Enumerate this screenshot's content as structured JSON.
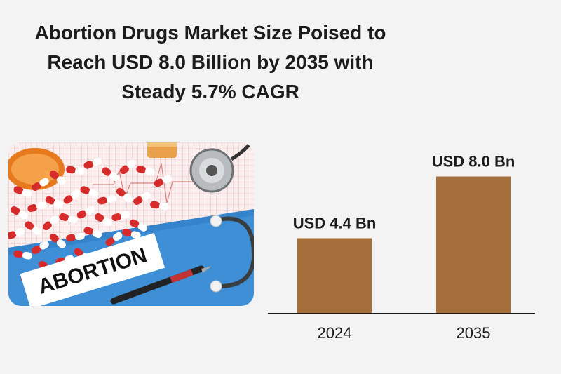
{
  "title_lines": [
    "Abortion Drugs Market Size Poised to",
    "Reach USD 8.0 Billion by 2035 with",
    "Steady 5.7% CAGR"
  ],
  "photo": {
    "sign_text": "ABORTION",
    "icons": [
      "pills-icon",
      "pill-bottle-icon",
      "stethoscope-icon",
      "pen-icon"
    ]
  },
  "colors": {
    "bar": "#a46f3a",
    "background": "#f3f3f3",
    "title": "#1c1c1c"
  },
  "chart_data": {
    "type": "bar",
    "title": "Abortion Drugs Market Size Poised to Reach USD 8.0 Billion by 2035 with Steady 5.7% CAGR",
    "categories": [
      "2024",
      "2035"
    ],
    "values": [
      4.4,
      8.0
    ],
    "data_labels": [
      "USD 4.4 Bn",
      "USD 8.0 Bn"
    ],
    "unit": "USD Bn",
    "xlabel": "",
    "ylabel": "",
    "ylim": [
      0,
      8.8
    ],
    "grid": false,
    "legend": "none"
  }
}
